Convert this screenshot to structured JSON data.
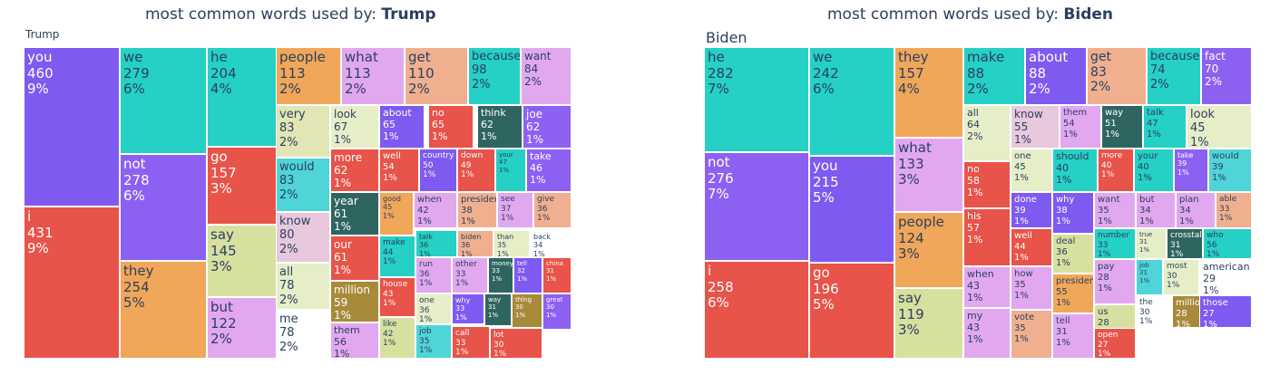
{
  "chart_data": [
    {
      "type": "treemap",
      "title_prefix": "most common words used by: ",
      "title_name": "Trump",
      "root_label": "Trump",
      "tiles": [
        {
          "label": "you",
          "value": 460,
          "percent": "9%",
          "color": "#7f5af0"
        },
        {
          "label": "i",
          "value": 431,
          "percent": "9%",
          "color": "#e8534a"
        },
        {
          "label": "we",
          "value": 279,
          "percent": "6%",
          "color": "#25d0c5"
        },
        {
          "label": "not",
          "value": 278,
          "percent": "6%",
          "color": "#8c61f2"
        },
        {
          "label": "they",
          "value": 254,
          "percent": "5%",
          "color": "#f0a75a"
        },
        {
          "label": "he",
          "value": 204,
          "percent": "4%",
          "color": "#25d0c5"
        },
        {
          "label": "go",
          "value": 157,
          "percent": "3%",
          "color": "#e8534a"
        },
        {
          "label": "say",
          "value": 145,
          "percent": "3%",
          "color": "#d8e0a0"
        },
        {
          "label": "but",
          "value": 122,
          "percent": "2%",
          "color": "#e2a8ef"
        },
        {
          "label": "people",
          "value": 113,
          "percent": "2%",
          "color": "#f0a75a"
        },
        {
          "label": "what",
          "value": 113,
          "percent": "2%",
          "color": "#e2a8ef"
        },
        {
          "label": "get",
          "value": 110,
          "percent": "2%",
          "color": "#f0b090"
        },
        {
          "label": "because",
          "value": 98,
          "percent": "2%",
          "color": "#25d0c5"
        },
        {
          "label": "want",
          "value": 84,
          "percent": "2%",
          "color": "#e2a8ef"
        },
        {
          "label": "very",
          "value": 83,
          "percent": "2%",
          "color": "#e2e6b4"
        },
        {
          "label": "would",
          "value": 83,
          "percent": "2%",
          "color": "#4fd4d8"
        },
        {
          "label": "know",
          "value": 80,
          "percent": "2%",
          "color": "#e8c8dc"
        },
        {
          "label": "all",
          "value": 78,
          "percent": "2%",
          "color": "#e6eec8"
        },
        {
          "label": "me",
          "value": 78,
          "percent": "2%",
          "color": "#ffffff"
        },
        {
          "label": "look",
          "value": 67,
          "percent": "1%",
          "color": "#e6eec8"
        },
        {
          "label": "about",
          "value": 65,
          "percent": "1%",
          "color": "#7f5af0"
        },
        {
          "label": "no",
          "value": 65,
          "percent": "1%",
          "color": "#e8534a"
        },
        {
          "label": "think",
          "value": 62,
          "percent": "1%",
          "color": "#2f6560"
        },
        {
          "label": "joe",
          "value": 62,
          "percent": "1%",
          "color": "#8c61f2"
        },
        {
          "label": "more",
          "value": 62,
          "percent": "1%",
          "color": "#e8534a"
        },
        {
          "label": "well",
          "value": 54,
          "percent": "1%",
          "color": "#e8534a"
        },
        {
          "label": "country",
          "value": 50,
          "percent": "1%",
          "color": "#7f5af0"
        },
        {
          "label": "down",
          "value": 49,
          "percent": "1%",
          "color": "#e8534a"
        },
        {
          "label": "your",
          "value": 47,
          "percent": "1%",
          "color": "#25d0c5"
        },
        {
          "label": "take",
          "value": 46,
          "percent": "1%",
          "color": "#8c61f2"
        },
        {
          "label": "year",
          "value": 61,
          "percent": "1%",
          "color": "#2f6560"
        },
        {
          "label": "good",
          "value": 45,
          "percent": "1%",
          "color": "#f0a75a"
        },
        {
          "label": "when",
          "value": 42,
          "percent": "1%",
          "color": "#e2a8ef"
        },
        {
          "label": "president",
          "value": 38,
          "percent": "1%",
          "color": "#f0b090"
        },
        {
          "label": "see",
          "value": 37,
          "percent": "1%",
          "color": "#e2a8ef"
        },
        {
          "label": "give",
          "value": 36,
          "percent": "1%",
          "color": "#f0b090"
        },
        {
          "label": "our",
          "value": 61,
          "percent": "1%",
          "color": "#e8534a"
        },
        {
          "label": "make",
          "value": 44,
          "percent": "1%",
          "color": "#25d0c5"
        },
        {
          "label": "talk",
          "value": 36,
          "percent": "1%",
          "color": "#25d0c5"
        },
        {
          "label": "biden",
          "value": 36,
          "percent": "1%",
          "color": "#f0b090"
        },
        {
          "label": "than",
          "value": 35,
          "percent": "1%",
          "color": "#e6eec8"
        },
        {
          "label": "back",
          "value": 34,
          "percent": "1%",
          "color": "#ffffff"
        },
        {
          "label": "million",
          "value": 59,
          "percent": "1%",
          "color": "#a88a3a"
        },
        {
          "label": "run",
          "value": 36,
          "percent": "1%",
          "color": "#e2a8ef"
        },
        {
          "label": "other",
          "value": 33,
          "percent": "1%",
          "color": "#e2a8ef"
        },
        {
          "label": "money",
          "value": 33,
          "percent": "1%",
          "color": "#2f6560"
        },
        {
          "label": "tell",
          "value": 32,
          "percent": "1%",
          "color": "#7f5af0"
        },
        {
          "label": "china",
          "value": 31,
          "percent": "1%",
          "color": "#e8534a"
        },
        {
          "label": "them",
          "value": 56,
          "percent": "1%",
          "color": "#e2a8ef"
        },
        {
          "label": "house",
          "value": 43,
          "percent": "1%",
          "color": "#e8534a"
        },
        {
          "label": "one",
          "value": 36,
          "percent": "1%",
          "color": "#e6eec8"
        },
        {
          "label": "why",
          "value": 33,
          "percent": "1%",
          "color": "#7f5af0"
        },
        {
          "label": "way",
          "value": 31,
          "percent": "1%",
          "color": "#2f6560"
        },
        {
          "label": "thing",
          "value": 30,
          "percent": "1%",
          "color": "#a88a3a"
        },
        {
          "label": "great",
          "value": 30,
          "percent": "1%",
          "color": "#8c61f2"
        },
        {
          "label": "like",
          "value": 42,
          "percent": "1%",
          "color": "#d8e0a0"
        },
        {
          "label": "job",
          "value": 35,
          "percent": "1%",
          "color": "#4fd4d8"
        },
        {
          "label": "call",
          "value": 33,
          "percent": "1%",
          "color": "#e8534a"
        },
        {
          "label": "lot",
          "value": 30,
          "percent": "1%",
          "color": "#e8534a"
        }
      ]
    },
    {
      "type": "treemap",
      "title_prefix": "most common words used by: ",
      "title_name": "Biden",
      "root_label": "Biden",
      "tiles": [
        {
          "label": "he",
          "value": 282,
          "percent": "7%",
          "color": "#25d0c5"
        },
        {
          "label": "not",
          "value": 276,
          "percent": "7%",
          "color": "#8c61f2"
        },
        {
          "label": "i",
          "value": 258,
          "percent": "6%",
          "color": "#e8534a"
        },
        {
          "label": "we",
          "value": 242,
          "percent": "6%",
          "color": "#25d0c5"
        },
        {
          "label": "you",
          "value": 215,
          "percent": "5%",
          "color": "#7f5af0"
        },
        {
          "label": "go",
          "value": 196,
          "percent": "5%",
          "color": "#e8534a"
        },
        {
          "label": "they",
          "value": 157,
          "percent": "4%",
          "color": "#f0a75a"
        },
        {
          "label": "what",
          "value": 133,
          "percent": "3%",
          "color": "#e2a8ef"
        },
        {
          "label": "people",
          "value": 124,
          "percent": "3%",
          "color": "#f0a75a"
        },
        {
          "label": "say",
          "value": 119,
          "percent": "3%",
          "color": "#d8e0a0"
        },
        {
          "label": "make",
          "value": 88,
          "percent": "2%",
          "color": "#25d0c5"
        },
        {
          "label": "about",
          "value": 88,
          "percent": "2%",
          "color": "#7f5af0"
        },
        {
          "label": "get",
          "value": 83,
          "percent": "2%",
          "color": "#f0b090"
        },
        {
          "label": "because",
          "value": 74,
          "percent": "2%",
          "color": "#25d0c5"
        },
        {
          "label": "fact",
          "value": 70,
          "percent": "2%",
          "color": "#8c61f2"
        },
        {
          "label": "all",
          "value": 64,
          "percent": "2%",
          "color": "#e6eec8"
        },
        {
          "label": "know",
          "value": 55,
          "percent": "1%",
          "color": "#e8c8dc"
        },
        {
          "label": "them",
          "value": 54,
          "percent": "1%",
          "color": "#e2a8ef"
        },
        {
          "label": "way",
          "value": 51,
          "percent": "1%",
          "color": "#2f6560"
        },
        {
          "label": "talk",
          "value": 47,
          "percent": "1%",
          "color": "#25d0c5"
        },
        {
          "label": "look",
          "value": 45,
          "percent": "1%",
          "color": "#e6eec8"
        },
        {
          "label": "no",
          "value": 58,
          "percent": "1%",
          "color": "#e8534a"
        },
        {
          "label": "one",
          "value": 45,
          "percent": "1%",
          "color": "#e6eec8"
        },
        {
          "label": "should",
          "value": 40,
          "percent": "1%",
          "color": "#25d0c5"
        },
        {
          "label": "more",
          "value": 40,
          "percent": "1%",
          "color": "#e8534a"
        },
        {
          "label": "your",
          "value": 40,
          "percent": "1%",
          "color": "#25d0c5"
        },
        {
          "label": "take",
          "value": 39,
          "percent": "1%",
          "color": "#8c61f2"
        },
        {
          "label": "would",
          "value": 39,
          "percent": "1%",
          "color": "#4fd4d8"
        },
        {
          "label": "his",
          "value": 57,
          "percent": "1%",
          "color": "#e8534a"
        },
        {
          "label": "done",
          "value": 39,
          "percent": "1%",
          "color": "#7f5af0"
        },
        {
          "label": "why",
          "value": 38,
          "percent": "1%",
          "color": "#7f5af0"
        },
        {
          "label": "want",
          "value": 35,
          "percent": "1%",
          "color": "#e2a8ef"
        },
        {
          "label": "but",
          "value": 34,
          "percent": "1%",
          "color": "#e2a8ef"
        },
        {
          "label": "plan",
          "value": 34,
          "percent": "1%",
          "color": "#e2a8ef"
        },
        {
          "label": "able",
          "value": 33,
          "percent": "1%",
          "color": "#f0b090"
        },
        {
          "label": "well",
          "value": 44,
          "percent": "1%",
          "color": "#e8534a"
        },
        {
          "label": "deal",
          "value": 36,
          "percent": "1%",
          "color": "#d8e0a0"
        },
        {
          "label": "number",
          "value": 33,
          "percent": "1%",
          "color": "#25d0c5"
        },
        {
          "label": "true",
          "value": 31,
          "percent": "1%",
          "color": "#e6eec8"
        },
        {
          "label": "crosstalk",
          "value": 31,
          "percent": "1%",
          "color": "#2f6560"
        },
        {
          "label": "who",
          "value": 56,
          "percent": "1%",
          "color": "#25d0c5"
        },
        {
          "label": "when",
          "value": 43,
          "percent": "1%",
          "color": "#e2a8ef"
        },
        {
          "label": "how",
          "value": 35,
          "percent": "1%",
          "color": "#e2a8ef"
        },
        {
          "label": "president",
          "value": 55,
          "percent": "1%",
          "color": "#f0a75a"
        },
        {
          "label": "my",
          "value": 43,
          "percent": "1%",
          "color": "#e2a8ef"
        },
        {
          "label": "vote",
          "value": 35,
          "percent": "1%",
          "color": "#f0b090"
        },
        {
          "label": "tell",
          "value": 31,
          "percent": "1%",
          "color": "#e2a8ef"
        },
        {
          "label": "pay",
          "value": 28,
          "percent": "1%",
          "color": "#e2a8ef"
        },
        {
          "label": "job",
          "value": 31,
          "percent": "1%",
          "color": "#4fd4d8"
        },
        {
          "label": "most",
          "value": 30,
          "percent": "1%",
          "color": "#e6eec8"
        },
        {
          "label": "american",
          "value": 29,
          "percent": "1%",
          "color": "#ffffff"
        },
        {
          "label": "the",
          "value": 30,
          "percent": "1%",
          "color": "#ffffff"
        },
        {
          "label": "million",
          "value": 28,
          "percent": "1%",
          "color": "#a88a3a"
        },
        {
          "label": "us",
          "value": 28,
          "percent": "1%",
          "color": "#d8e0a0"
        },
        {
          "label": "those",
          "value": 27,
          "percent": "1%",
          "color": "#7f5af0"
        },
        {
          "label": "open",
          "value": 27,
          "percent": "1%",
          "color": "#e8534a"
        }
      ]
    }
  ]
}
